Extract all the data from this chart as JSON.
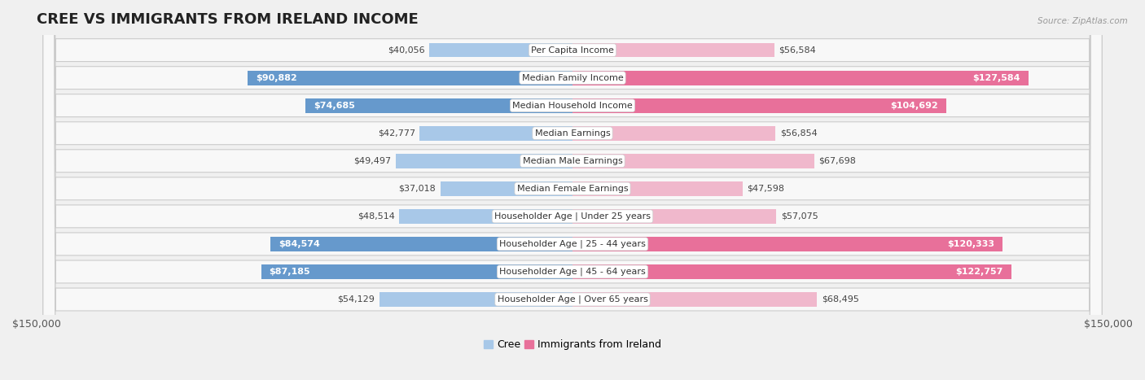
{
  "title": "CREE VS IMMIGRANTS FROM IRELAND INCOME",
  "source": "Source: ZipAtlas.com",
  "categories": [
    "Per Capita Income",
    "Median Family Income",
    "Median Household Income",
    "Median Earnings",
    "Median Male Earnings",
    "Median Female Earnings",
    "Householder Age | Under 25 years",
    "Householder Age | 25 - 44 years",
    "Householder Age | 45 - 64 years",
    "Householder Age | Over 65 years"
  ],
  "cree_values": [
    40056,
    90882,
    74685,
    42777,
    49497,
    37018,
    48514,
    84574,
    87185,
    54129
  ],
  "ireland_values": [
    56584,
    127584,
    104692,
    56854,
    67698,
    47598,
    57075,
    120333,
    122757,
    68495
  ],
  "max_val": 150000,
  "cree_color_light": "#a8c8e8",
  "cree_color_dark": "#6699cc",
  "ireland_color_light": "#f0b8cc",
  "ireland_color_dark": "#e8709a",
  "bg_color": "#f0f0f0",
  "row_bg": "#f8f8f8",
  "row_border": "#cccccc",
  "title_fontsize": 13,
  "axis_label_fontsize": 9,
  "bar_label_fontsize": 8,
  "category_fontsize": 8,
  "legend_fontsize": 9,
  "cree_thresh": 65000,
  "ireland_thresh": 90000
}
